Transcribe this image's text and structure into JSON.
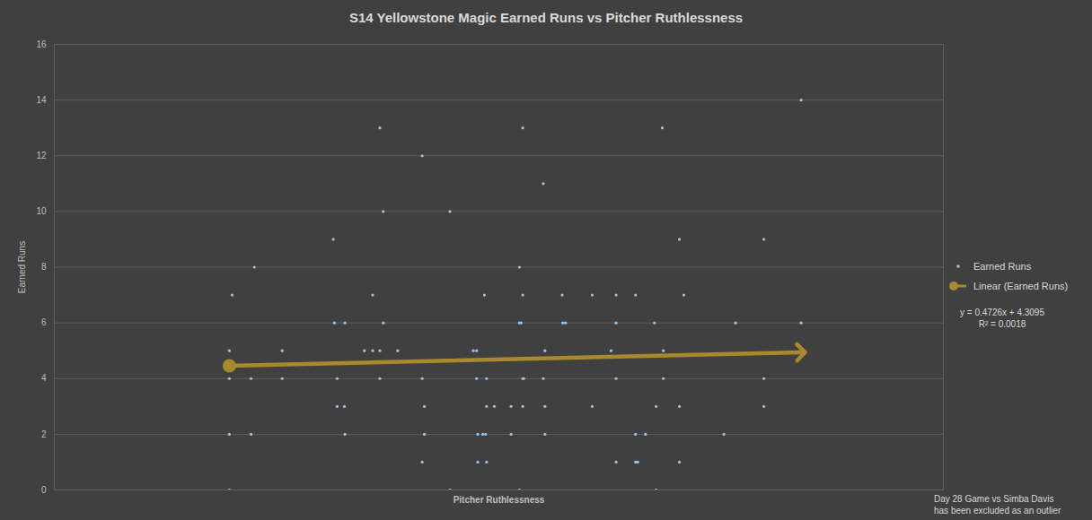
{
  "chart_data": {
    "type": "scatter",
    "title": "S14 Yellowstone Magic Earned Runs vs Pitcher Ruthlessness",
    "x_label": "Pitcher Ruthlessness",
    "y_label": "Earned Runs",
    "xlim": [
      0,
      1.6
    ],
    "ylim": [
      0,
      16
    ],
    "yticks": [
      0,
      2,
      4,
      6,
      8,
      10,
      12,
      14,
      16
    ],
    "grid": true,
    "tick_labels": "y",
    "legend": "right",
    "annotations": [
      "y = 0.4726x + 4.3095",
      "R² = 0.0018"
    ],
    "note": [
      "Day 28 Game vs Simba Davis",
      "has been excluded as an outlier"
    ],
    "series": [
      {
        "name": "Earned Runs",
        "type": "scatter",
        "color": "#9dc3e6",
        "marker": "dot",
        "x": [
          0.315,
          0.315,
          0.315,
          0.315,
          0.32,
          0.36,
          0.354,
          0.354,
          0.41,
          0.41,
          0.502,
          0.504,
          0.509,
          0.509,
          0.522,
          0.523,
          0.523,
          0.558,
          0.573,
          0.573,
          0.586,
          0.586,
          0.586,
          0.592,
          0.592,
          0.618,
          0.662,
          0.662,
          0.666,
          0.666,
          0.662,
          0.712,
          0.712,
          0.754,
          0.76,
          0.76,
          0.762,
          0.762,
          0.774,
          0.771,
          0.776,
          0.778,
          0.778,
          0.778,
          0.792,
          0.822,
          0.822,
          0.837,
          0.837,
          0.837,
          0.84,
          0.843,
          0.843,
          0.843,
          0.843,
          0.845,
          0.88,
          0.88,
          0.883,
          0.883,
          0.883,
          0.914,
          0.915,
          0.92,
          0.968,
          0.968,
          1.002,
          1.011,
          1.011,
          1.011,
          1.011,
          1.046,
          1.046,
          1.046,
          1.05,
          1.064,
          1.08,
          1.083,
          1.083,
          1.094,
          1.096,
          1.096,
          1.125,
          1.125,
          1.125,
          1.133,
          1.205,
          1.226,
          1.277,
          1.277,
          1.277,
          1.344,
          1.344,
          1.344
        ],
        "values": [
          5,
          4,
          2,
          0,
          7,
          8,
          4,
          2,
          5,
          4,
          9,
          6,
          4,
          3,
          3,
          6,
          2,
          5,
          5,
          7,
          5,
          13,
          4,
          10,
          6,
          5,
          12,
          4,
          3,
          2,
          1,
          10,
          0,
          5,
          5,
          4,
          2,
          1,
          7,
          2,
          2,
          4,
          3,
          1,
          3,
          3,
          2,
          8,
          6,
          0,
          6,
          13,
          7,
          4,
          3,
          4,
          11,
          4,
          5,
          3,
          2,
          7,
          6,
          6,
          7,
          3,
          5,
          7,
          6,
          4,
          1,
          7,
          2,
          1,
          1,
          2,
          6,
          3,
          0,
          13,
          5,
          4,
          9,
          3,
          1,
          7,
          2,
          6,
          9,
          4,
          3,
          14,
          6,
          5
        ]
      },
      {
        "name": "Linear (Earned Runs)",
        "type": "line",
        "color": "#a8892c",
        "marker": "arrow",
        "x": [
          0.315,
          1.344
        ],
        "values": [
          4.458,
          4.945
        ]
      }
    ]
  }
}
